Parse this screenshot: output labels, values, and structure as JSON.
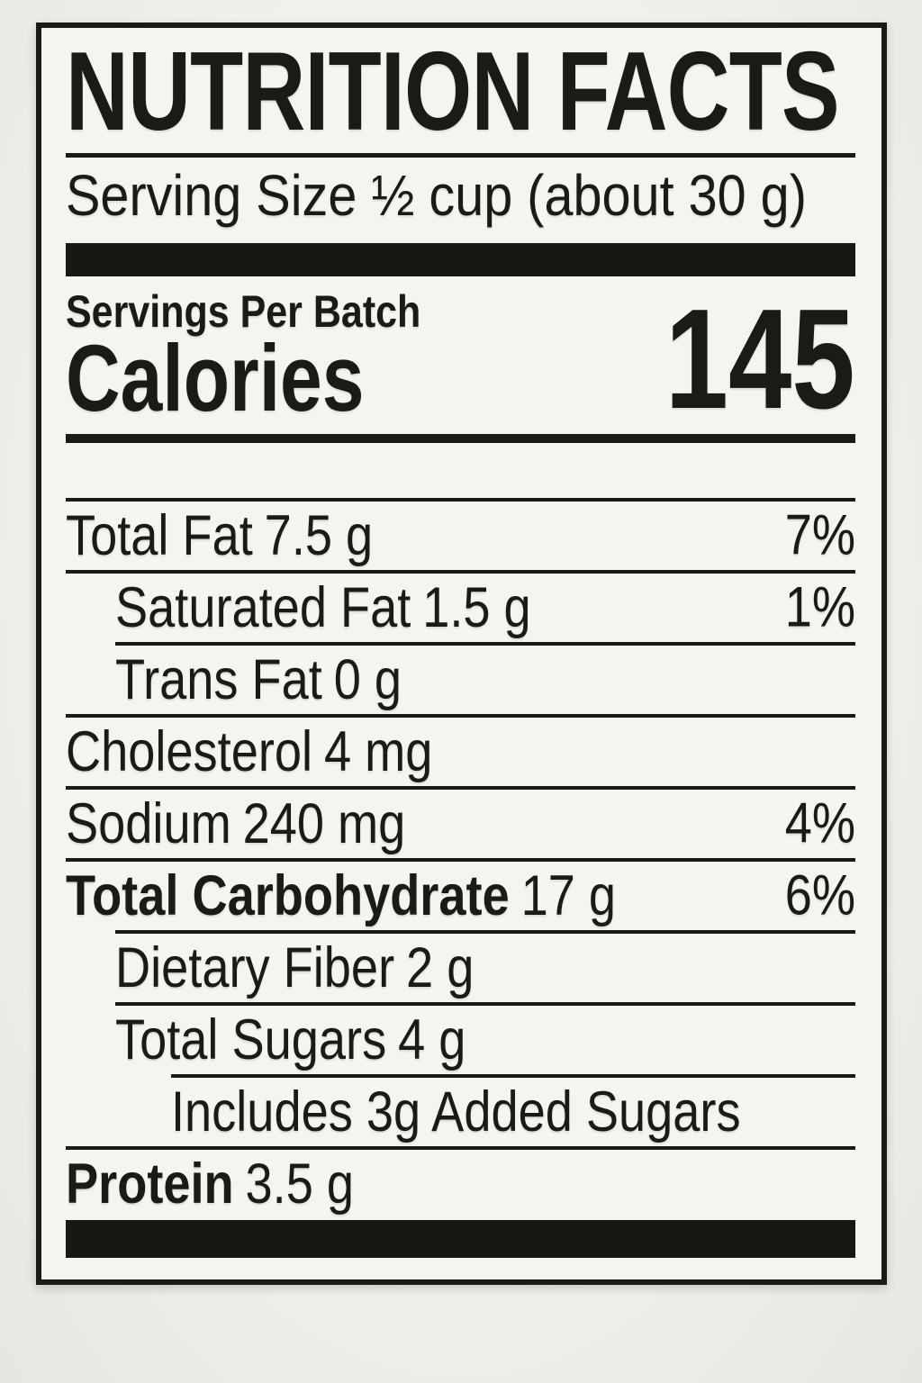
{
  "label": {
    "title": "NUTRITION FACTS",
    "serving_size": "Serving Size ½ cup (about 30 g)",
    "servings_per_batch": "Servings Per Batch",
    "calories_label": "Calories",
    "calories_value": "145",
    "rows": [
      {
        "name": "Total Fat",
        "amount": "7.5 g",
        "dv": "7%"
      },
      {
        "name": "Saturated Fat",
        "amount": "1.5 g",
        "dv": "1%"
      },
      {
        "name": "Trans Fat",
        "amount": "0 g",
        "dv": ""
      },
      {
        "name": "Cholesterol",
        "amount": "4 mg",
        "dv": ""
      },
      {
        "name": "Sodium",
        "amount": "240 mg",
        "dv": "4%"
      },
      {
        "name": "Total Carbohydrate",
        "amount": "17 g",
        "dv": "6%"
      },
      {
        "name": "Dietary Fiber",
        "amount": "2 g",
        "dv": ""
      },
      {
        "name": "Total Sugars",
        "amount": "4 g",
        "dv": ""
      },
      {
        "name": "Includes 3g Added Sugars",
        "amount": "",
        "dv": ""
      },
      {
        "name": "Protein",
        "amount": "3.5 g",
        "dv": ""
      }
    ],
    "colors": {
      "ink": "#1c1a17",
      "label_bg": "#f5f4f1",
      "page_bg": "#efeeeb"
    }
  }
}
